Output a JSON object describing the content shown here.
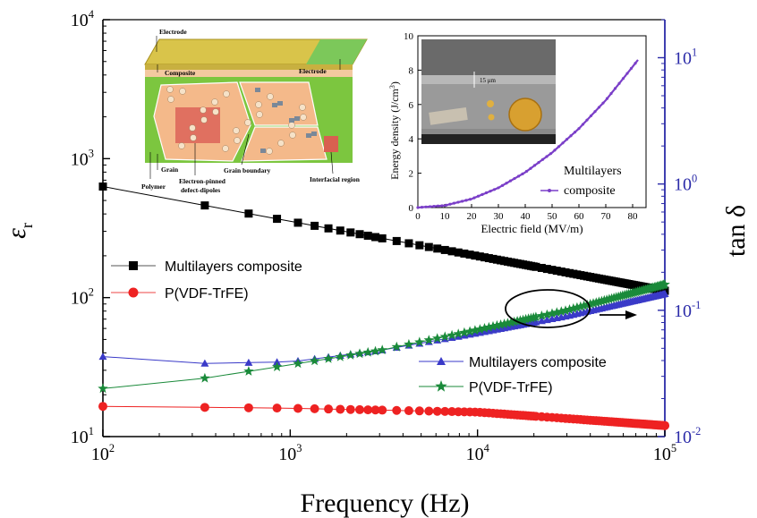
{
  "chart_data": [
    {
      "type": "scatter",
      "title": "",
      "xlabel": "Frequency (Hz)",
      "ylabel_left_symbol": "ε",
      "ylabel_left_sub": "r",
      "ylabel_right": "tan δ",
      "x_scale": "log",
      "y_left_scale": "log",
      "y_right_scale": "log",
      "xlim": [
        100,
        100000
      ],
      "ylim_left": [
        10,
        10000
      ],
      "ylim_right": [
        0.01,
        20
      ],
      "x_ticks": [
        {
          "base": "10",
          "exp": "2"
        },
        {
          "base": "10",
          "exp": "3"
        },
        {
          "base": "10",
          "exp": "4"
        },
        {
          "base": "10",
          "exp": "5"
        }
      ],
      "y_left_ticks": [
        {
          "base": "10",
          "exp": "1"
        },
        {
          "base": "10",
          "exp": "2"
        },
        {
          "base": "10",
          "exp": "3"
        },
        {
          "base": "10",
          "exp": "4"
        }
      ],
      "y_right_ticks": [
        {
          "base": "10",
          "exp": "-2"
        },
        {
          "base": "10",
          "exp": "-1"
        },
        {
          "base": "10",
          "exp": "0"
        },
        {
          "base": "10",
          "exp": "1"
        }
      ],
      "legend_left": {
        "placement": "middle-left",
        "entries": [
          "Multilayers composite",
          "P(VDF-TrFE)"
        ]
      },
      "legend_right": {
        "placement": "lower-right",
        "entries": [
          "Multilayers composite",
          "P(VDF-TrFE)"
        ]
      },
      "series": [
        {
          "name": "Multilayers composite",
          "axis": "left",
          "marker": "square",
          "color": "#000000",
          "points": [
            [
              100,
              630
            ],
            [
              100000,
              112
            ]
          ]
        },
        {
          "name": "P(VDF-TrFE)",
          "axis": "left",
          "marker": "circle",
          "color": "#ee2222",
          "points": [
            [
              100,
              16.5
            ],
            [
              1000,
              16
            ],
            [
              10000,
              15
            ],
            [
              100000,
              12
            ]
          ]
        },
        {
          "name": "Multilayers composite",
          "axis": "right",
          "marker": "triangle",
          "color": "#3a3ac8",
          "points": [
            [
              100,
              0.043
            ],
            [
              350,
              0.038
            ],
            [
              1000,
              0.039
            ],
            [
              3000,
              0.048
            ],
            [
              10000,
              0.066
            ],
            [
              30000,
              0.09
            ],
            [
              100000,
              0.135
            ]
          ]
        },
        {
          "name": "P(VDF-TrFE)",
          "axis": "right",
          "marker": "star",
          "color": "#1a8a3a",
          "points": [
            [
              100,
              0.024
            ],
            [
              350,
              0.029
            ],
            [
              1000,
              0.037
            ],
            [
              3000,
              0.048
            ],
            [
              10000,
              0.07
            ],
            [
              30000,
              0.1
            ],
            [
              100000,
              0.16
            ]
          ]
        }
      ]
    },
    {
      "type": "line",
      "title": "",
      "xlabel": "Electric field (MV/m)",
      "ylabel": "Energy density (J/cm",
      "ylabel_sup": "3",
      "ylabel_close": ")",
      "xlim": [
        0,
        85
      ],
      "ylim": [
        0,
        10
      ],
      "x_ticks": [
        "0",
        "10",
        "20",
        "30",
        "40",
        "50",
        "60",
        "70",
        "80"
      ],
      "y_ticks": [
        "0",
        "2",
        "4",
        "6",
        "8",
        "10"
      ],
      "legend": {
        "placement": "lower-right",
        "entries": [
          "Multilayers composite"
        ],
        "lines": [
          "Multilayers",
          "composite"
        ]
      },
      "series": [
        {
          "name": "Multilayers composite",
          "color": "#7a3ec8",
          "points": [
            [
              0,
              0
            ],
            [
              10,
              0.12
            ],
            [
              20,
              0.5
            ],
            [
              30,
              1.15
            ],
            [
              40,
              2.05
            ],
            [
              50,
              3.2
            ],
            [
              60,
              4.6
            ],
            [
              70,
              6.25
            ],
            [
              80,
              8.2
            ],
            [
              82,
              8.6
            ]
          ]
        }
      ]
    }
  ],
  "inset_micrograph": {
    "scale_label": "15 μm"
  },
  "schematic": {
    "labels": {
      "electrode_top": "Electrode",
      "composite": "Composite",
      "electrode_right": "Electrode",
      "grain": "Grain",
      "polymer": "Polymer",
      "electron_pinned_1": "Electron-pinned",
      "electron_pinned_2": "defect-dipoles",
      "grain_boundary": "Grain boundary",
      "interfacial": "Interfacial region"
    },
    "colors": {
      "electrode": "#d9c44a",
      "electrode_edge": "#7cc85a",
      "composite": "#f3c9a0",
      "polymer": "#7cc63f",
      "grain": "#f4b98a",
      "pinned": "#e07060"
    }
  },
  "annotation": {
    "arrow_direction": "right"
  }
}
